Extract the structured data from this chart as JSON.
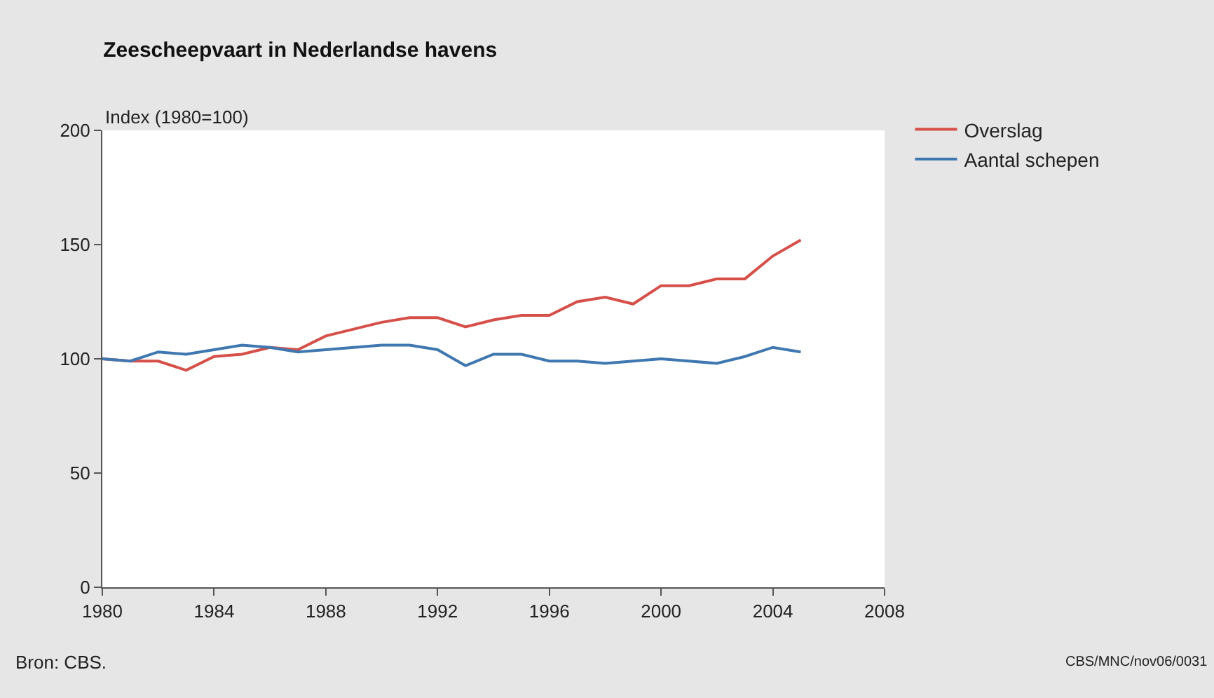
{
  "chart_data": {
    "type": "line",
    "title": "Zeescheepvaart in Nederlandse havens",
    "ylabel": "Index (1980=100)",
    "x": [
      1980,
      1981,
      1982,
      1983,
      1984,
      1985,
      1986,
      1987,
      1988,
      1989,
      1990,
      1991,
      1992,
      1993,
      1994,
      1995,
      1996,
      1997,
      1998,
      1999,
      2000,
      2001,
      2002,
      2003,
      2004,
      2005
    ],
    "series": [
      {
        "name": "Overslag",
        "color": "#d6504a",
        "values": [
          100,
          99,
          99,
          95,
          101,
          102,
          105,
          104,
          110,
          113,
          116,
          118,
          118,
          114,
          117,
          119,
          119,
          125,
          127,
          124,
          132,
          132,
          135,
          135,
          145,
          152
        ]
      },
      {
        "name": "Aantal schepen",
        "color": "#3f78b0",
        "values": [
          100,
          99,
          103,
          102,
          104,
          106,
          105,
          103,
          104,
          105,
          106,
          106,
          104,
          97,
          102,
          102,
          99,
          99,
          98,
          99,
          100,
          99,
          98,
          101,
          105,
          103
        ]
      }
    ],
    "xlim": [
      1980,
      2008
    ],
    "xticks": [
      1980,
      1984,
      1988,
      1992,
      1996,
      2000,
      2004,
      2008
    ],
    "ylim": [
      0,
      200
    ],
    "yticks": [
      0,
      50,
      100,
      150,
      200
    ],
    "legend": "top right",
    "marker": "none",
    "line_style": "solid",
    "annotations": [
      "Bron: CBS.",
      "CBS/MNC/nov06/0031"
    ]
  }
}
